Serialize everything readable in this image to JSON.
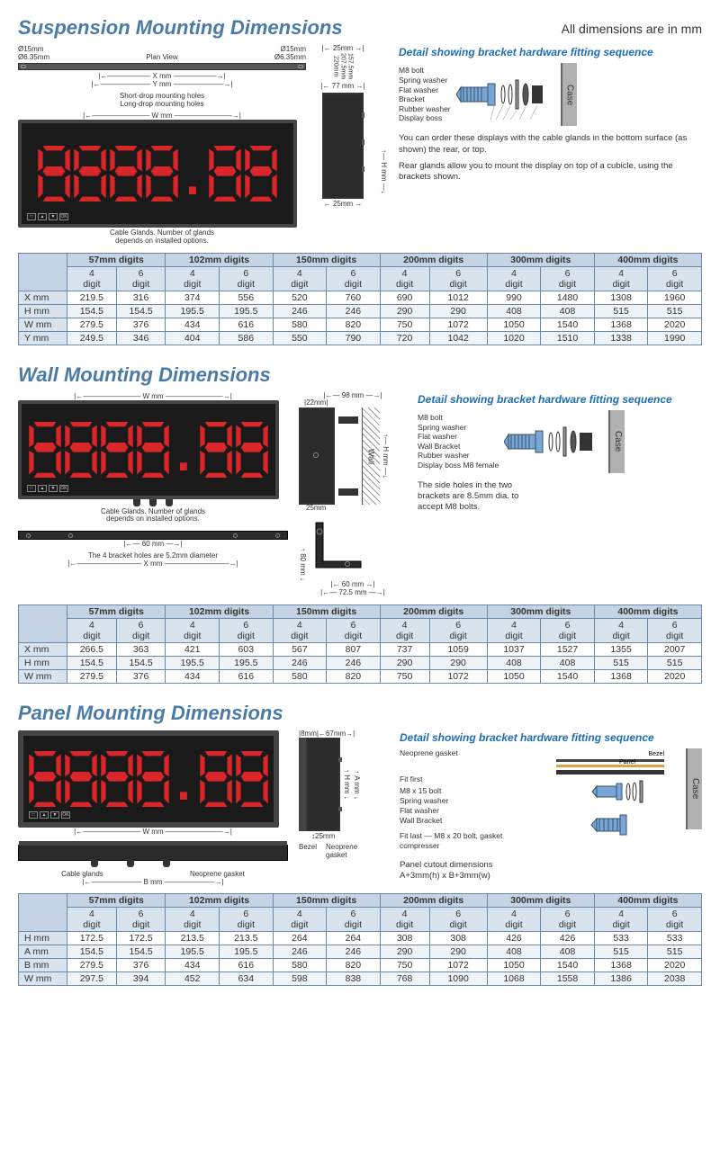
{
  "units_note": "All dimensions are in mm",
  "colors": {
    "heading": "#4a7ba6",
    "detail_title": "#1e6db5",
    "digit_red": "#d8262a",
    "display_bg": "#1a1a1a",
    "table_border": "#6b8aa8",
    "table_header_bg": "#c4d4e4",
    "table_subheader_bg": "#d8e3ee",
    "case_grey": "#b0b0b0"
  },
  "display_value": "8888.88",
  "glands_note": "Cable Glands. Number of glands\ndepends on installed options.",
  "suspension": {
    "title": "Suspension Mounting Dimensions",
    "plan_view_label": "Plan View",
    "hole_dia": "Ø15mm",
    "inner_hole_dia": "Ø6.35mm",
    "x_label": "X mm",
    "y_label": "Y mm",
    "short_drop": "Short-drop mounting holes",
    "long_drop": "Long-drop mounting holes",
    "w_label": "W mm",
    "h_label": "H mm",
    "side_dims": [
      "220mm",
      "207.5mm",
      "157.5mm"
    ],
    "side_width": "77 mm",
    "base_offset": "25mm",
    "top_offset": "25mm",
    "detail_title": "Detail showing bracket hardware fitting sequence",
    "hardware": [
      "M8 bolt",
      "Spring washer",
      "Flat washer",
      "Bracket",
      "Rubber washer",
      "Display boss"
    ],
    "case_label": "Case",
    "note1": "You can order these displays with the cable glands in the bottom surface (as shown) the rear, or top.",
    "note2": "Rear glands allow you to mount the display on top of a cubicle, using the brackets shown.",
    "table": {
      "digit_sizes": [
        "57mm digits",
        "102mm digits",
        "150mm digits",
        "200mm digits",
        "300mm digits",
        "400mm digits"
      ],
      "sub": [
        "4 digit",
        "6 digit"
      ],
      "rows": [
        {
          "label": "X mm",
          "v": [
            219.5,
            316,
            374,
            556,
            520,
            760,
            690,
            1012,
            990,
            1480,
            1308,
            1960
          ]
        },
        {
          "label": "H mm",
          "v": [
            154.5,
            154.5,
            195.5,
            195.5,
            246,
            246,
            290,
            290,
            408,
            408,
            515,
            515
          ]
        },
        {
          "label": "W mm",
          "v": [
            279.5,
            376,
            434,
            616,
            580,
            820,
            750,
            1072,
            1050,
            1540,
            1368,
            2020
          ]
        },
        {
          "label": "Y mm",
          "v": [
            249.5,
            346,
            404,
            586,
            550,
            790,
            720,
            1042,
            1020,
            1510,
            1338,
            1990
          ]
        }
      ]
    }
  },
  "wall": {
    "title": "Wall Mounting Dimensions",
    "w_label": "W mm",
    "h_label": "H mm",
    "x_label": "X mm",
    "side_top": "98 mm",
    "side_inner": "22mm",
    "base_offset": "25mm",
    "bracket_span": "60 mm",
    "bracket_height": "80 mm",
    "bracket_base_w": "60 mm",
    "bracket_total_w": "72.5 mm",
    "bracket_hole_note": "The 4 bracket holes are 5.2mm diameter",
    "wall_label": "Wall",
    "detail_title": "Detail showing bracket hardware fitting sequence",
    "hardware": [
      "M8 bolt",
      "Spring washer",
      "Flat washer",
      "Wall Bracket",
      "Rubber washer",
      "Display boss M8 female"
    ],
    "case_label": "Case",
    "side_note": "The side holes in the two brackets are 8.5mm dia. to accept M8 bolts.",
    "table": {
      "digit_sizes": [
        "57mm digits",
        "102mm digits",
        "150mm digits",
        "200mm digits",
        "300mm digits",
        "400mm digits"
      ],
      "sub": [
        "4 digit",
        "6 digit"
      ],
      "rows": [
        {
          "label": "X mm",
          "v": [
            266.5,
            363,
            421,
            603,
            567,
            807,
            737,
            1059,
            1037,
            1527,
            1355,
            2007
          ]
        },
        {
          "label": "H mm",
          "v": [
            154.5,
            154.5,
            195.5,
            195.5,
            246,
            246,
            290,
            290,
            408,
            408,
            515,
            515
          ]
        },
        {
          "label": "W mm",
          "v": [
            279.5,
            376,
            434,
            616,
            580,
            820,
            750,
            1072,
            1050,
            1540,
            1368,
            2020
          ]
        }
      ]
    }
  },
  "panel": {
    "title": "Panel Mounting Dimensions",
    "w_label": "W mm",
    "h_label": "H mm",
    "a_label": "A mm",
    "b_label": "B mm",
    "bezel_label": "Bezel",
    "neoprene_label": "Neoprene gasket",
    "cable_glands_label": "Cable glands",
    "side_top": "67mm",
    "side_inner": "8mm",
    "side_gap": "25mm",
    "fit_first": "Fit first",
    "fit_last": "Fit last",
    "detail_title": "Detail showing bracket hardware fitting sequence",
    "hardware": [
      "M8 x 15 bolt",
      "Spring washer",
      "Flat washer",
      "Wall Bracket"
    ],
    "last_bolt": "M8 x 20 bolt, gasket compresser",
    "panel_label": "Panel",
    "bezel_top_label": "Bezel",
    "case_label": "Case",
    "cutout_note": "Panel cutout dimensions\nA+3mm(h) x B+3mm(w)",
    "neoprene_gasket_top": "Neoprene gasket",
    "table": {
      "digit_sizes": [
        "57mm digits",
        "102mm digits",
        "150mm digits",
        "200mm digits",
        "300mm digits",
        "400mm digits"
      ],
      "sub": [
        "4 digit",
        "6 digit"
      ],
      "rows": [
        {
          "label": "H mm",
          "v": [
            172.5,
            172.5,
            213.5,
            213.5,
            264,
            264,
            308,
            308,
            426,
            426,
            533,
            533
          ]
        },
        {
          "label": "A mm",
          "v": [
            154.5,
            154.5,
            195.5,
            195.5,
            246,
            246,
            290,
            290,
            408,
            408,
            515,
            515
          ]
        },
        {
          "label": "B mm",
          "v": [
            279.5,
            376,
            434,
            616,
            580,
            820,
            750,
            1072,
            1050,
            1540,
            1368,
            2020
          ]
        },
        {
          "label": "W mm",
          "v": [
            297.5,
            394,
            452,
            634,
            598,
            838,
            768,
            1090,
            1068,
            1558,
            1386,
            2038
          ]
        }
      ]
    }
  }
}
